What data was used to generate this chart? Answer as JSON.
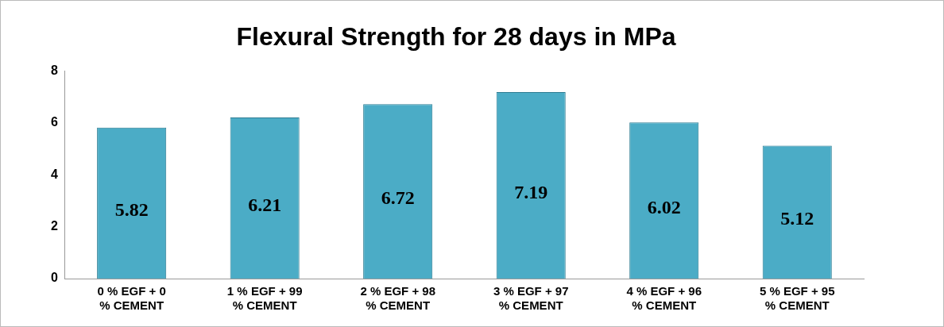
{
  "chart_data": {
    "type": "bar",
    "title": "Flexural Strength for 28 days in MPa",
    "categories": [
      "0 % EGF + 0\n% CEMENT",
      "1 % EGF + 99\n% CEMENT",
      "2 % EGF + 98\n% CEMENT",
      "3 % EGF + 97\n% CEMENT",
      "4 % EGF + 96\n% CEMENT",
      "5 % EGF + 95\n% CEMENT"
    ],
    "values": [
      5.82,
      6.21,
      6.72,
      7.19,
      6.02,
      5.12
    ],
    "color": "#4bacc6",
    "ylim": [
      0,
      8
    ],
    "yticks": [
      0,
      2,
      4,
      6,
      8
    ],
    "grid": false,
    "legend": false,
    "data_labels": true
  }
}
